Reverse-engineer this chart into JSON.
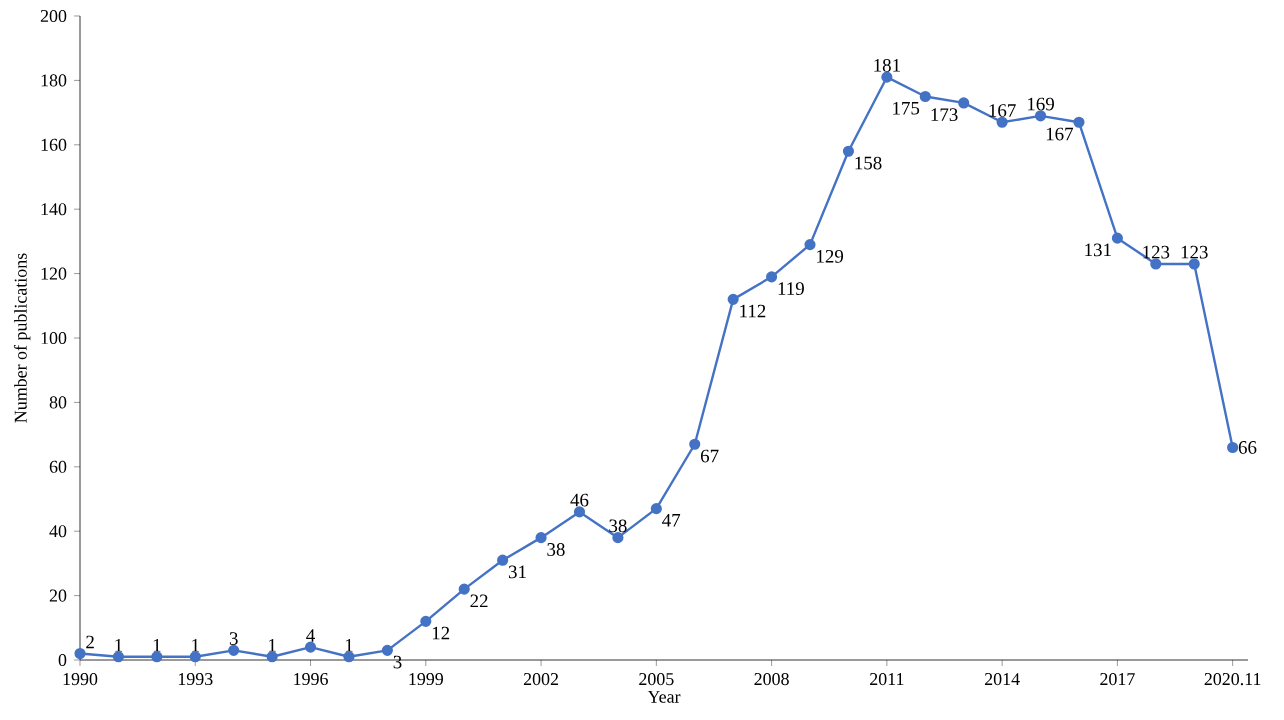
{
  "chart_data": {
    "type": "line",
    "xlabel": "Year",
    "ylabel": "Number of publications",
    "categories": [
      "1990",
      null,
      null,
      "1993",
      null,
      null,
      "1996",
      null,
      null,
      "1999",
      null,
      null,
      "2002",
      null,
      null,
      "2005",
      null,
      null,
      "2008",
      null,
      null,
      "2011",
      null,
      null,
      "2014",
      null,
      null,
      "2017",
      null,
      null,
      "2020.11"
    ],
    "values": [
      2,
      1,
      1,
      1,
      3,
      1,
      4,
      1,
      3,
      12,
      22,
      31,
      38,
      46,
      38,
      47,
      67,
      112,
      119,
      129,
      158,
      181,
      175,
      173,
      167,
      169,
      167,
      131,
      123,
      123,
      66
    ],
    "color": "#4472c4",
    "marker": "circle",
    "data_labels": true,
    "grid": false,
    "ylim": [
      0,
      200
    ],
    "yticks": [
      0,
      20,
      40,
      60,
      80,
      100,
      120,
      140,
      160,
      180,
      200
    ]
  }
}
